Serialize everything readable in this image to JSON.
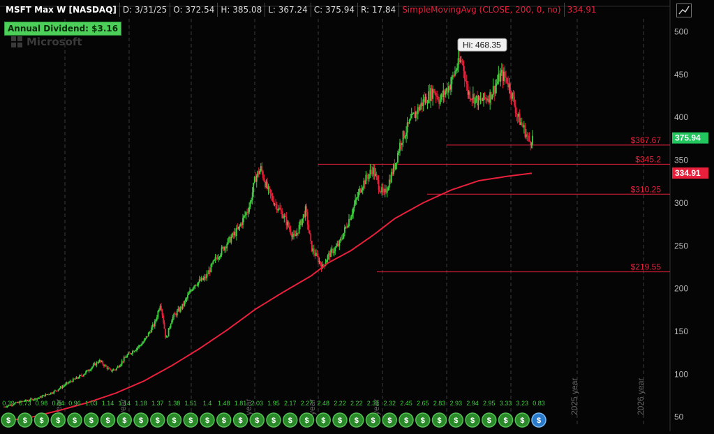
{
  "header": {
    "symbol": "MSFT Max W [NASDAQ]",
    "date": "D: 3/31/25",
    "open": "O: 372.54",
    "high": "H: 385.08",
    "low": "L: 367.24",
    "close": "C: 375.94",
    "range": "R: 17.84",
    "study": "SimpleMovingAvg (CLOSE, 200, 0, no)",
    "study_value": "334.91"
  },
  "badge": {
    "dividend": "Annual Dividend: $3.16"
  },
  "watermark": {
    "name": "Microsoft"
  },
  "colors": {
    "up": "#3fd13f",
    "down": "#e8203c",
    "sma": "#e8203c",
    "grid": "#3a3a3a",
    "last_price_bg": "#22c55e",
    "sma_label_bg": "#e8203c"
  },
  "chart_data": {
    "type": "candlestick",
    "ylim": [
      40,
      515
    ],
    "yticks": [
      50,
      100,
      150,
      200,
      250,
      300,
      350,
      400,
      450,
      500
    ],
    "year_labels": [
      "year",
      "year",
      "year",
      "year",
      "year",
      "2025 year",
      "2026 year"
    ],
    "last_price": "375.94",
    "sma_last": "334.91",
    "high_callout": "Hi: 468.35",
    "levels": [
      {
        "value": 367.67,
        "label": "$367.67"
      },
      {
        "value": 345.2,
        "label": "$345.2"
      },
      {
        "value": 310.25,
        "label": "$310.25"
      },
      {
        "value": 219.55,
        "label": "$219.55"
      }
    ],
    "price_path": [
      [
        0,
        62
      ],
      [
        3,
        68
      ],
      [
        6,
        72
      ],
      [
        9,
        80
      ],
      [
        12,
        92
      ],
      [
        14,
        99
      ],
      [
        16,
        110
      ],
      [
        17,
        116
      ],
      [
        19,
        104
      ],
      [
        20,
        106
      ],
      [
        22,
        122
      ],
      [
        24,
        132
      ],
      [
        25,
        138
      ],
      [
        27,
        160
      ],
      [
        28,
        184
      ],
      [
        29,
        140
      ],
      [
        30,
        165
      ],
      [
        32,
        180
      ],
      [
        34,
        205
      ],
      [
        36,
        212
      ],
      [
        38,
        236
      ],
      [
        40,
        254
      ],
      [
        42,
        270
      ],
      [
        44,
        298
      ],
      [
        45,
        330
      ],
      [
        46,
        340
      ],
      [
        47,
        318
      ],
      [
        48,
        305
      ],
      [
        50,
        285
      ],
      [
        52,
        258
      ],
      [
        54,
        292
      ],
      [
        55,
        248
      ],
      [
        57,
        225
      ],
      [
        58,
        238
      ],
      [
        60,
        252
      ],
      [
        62,
        285
      ],
      [
        64,
        320
      ],
      [
        66,
        340
      ],
      [
        67,
        322
      ],
      [
        68,
        308
      ],
      [
        70,
        345
      ],
      [
        71,
        372
      ],
      [
        73,
        398
      ],
      [
        75,
        418
      ],
      [
        77,
        432
      ],
      [
        78,
        420
      ],
      [
        80,
        440
      ],
      [
        81,
        458
      ],
      [
        82,
        468
      ],
      [
        83,
        430
      ],
      [
        85,
        418
      ],
      [
        87,
        425
      ],
      [
        89,
        450
      ],
      [
        90,
        445
      ],
      [
        91,
        425
      ],
      [
        92,
        400
      ],
      [
        93,
        388
      ],
      [
        94,
        372
      ],
      [
        94.7,
        375.94
      ]
    ],
    "sma_path": [
      [
        0,
        45
      ],
      [
        5,
        50
      ],
      [
        10,
        58
      ],
      [
        15,
        67
      ],
      [
        20,
        78
      ],
      [
        25,
        92
      ],
      [
        30,
        110
      ],
      [
        35,
        130
      ],
      [
        40,
        152
      ],
      [
        45,
        176
      ],
      [
        50,
        196
      ],
      [
        55,
        215
      ],
      [
        58,
        230
      ],
      [
        62,
        244
      ],
      [
        66,
        262
      ],
      [
        70,
        282
      ],
      [
        75,
        300
      ],
      [
        80,
        315
      ],
      [
        85,
        326
      ],
      [
        90,
        331
      ],
      [
        94.7,
        334.91
      ]
    ],
    "dividends": [
      "0.39",
      "0.73",
      "0.98",
      "0.84",
      "0.96",
      "1.03",
      "1.14",
      "1.14",
      "1.18",
      "1.37",
      "1.38",
      "1.51",
      "1.4",
      "1.48",
      "1.81",
      "2.03",
      "1.95",
      "2.17",
      "2.27",
      "2.48",
      "2.22",
      "2.22",
      "2.31",
      "2.32",
      "2.45",
      "2.65",
      "2.83",
      "2.93",
      "2.94",
      "2.95",
      "3.33",
      "3.23",
      "0.83"
    ]
  }
}
